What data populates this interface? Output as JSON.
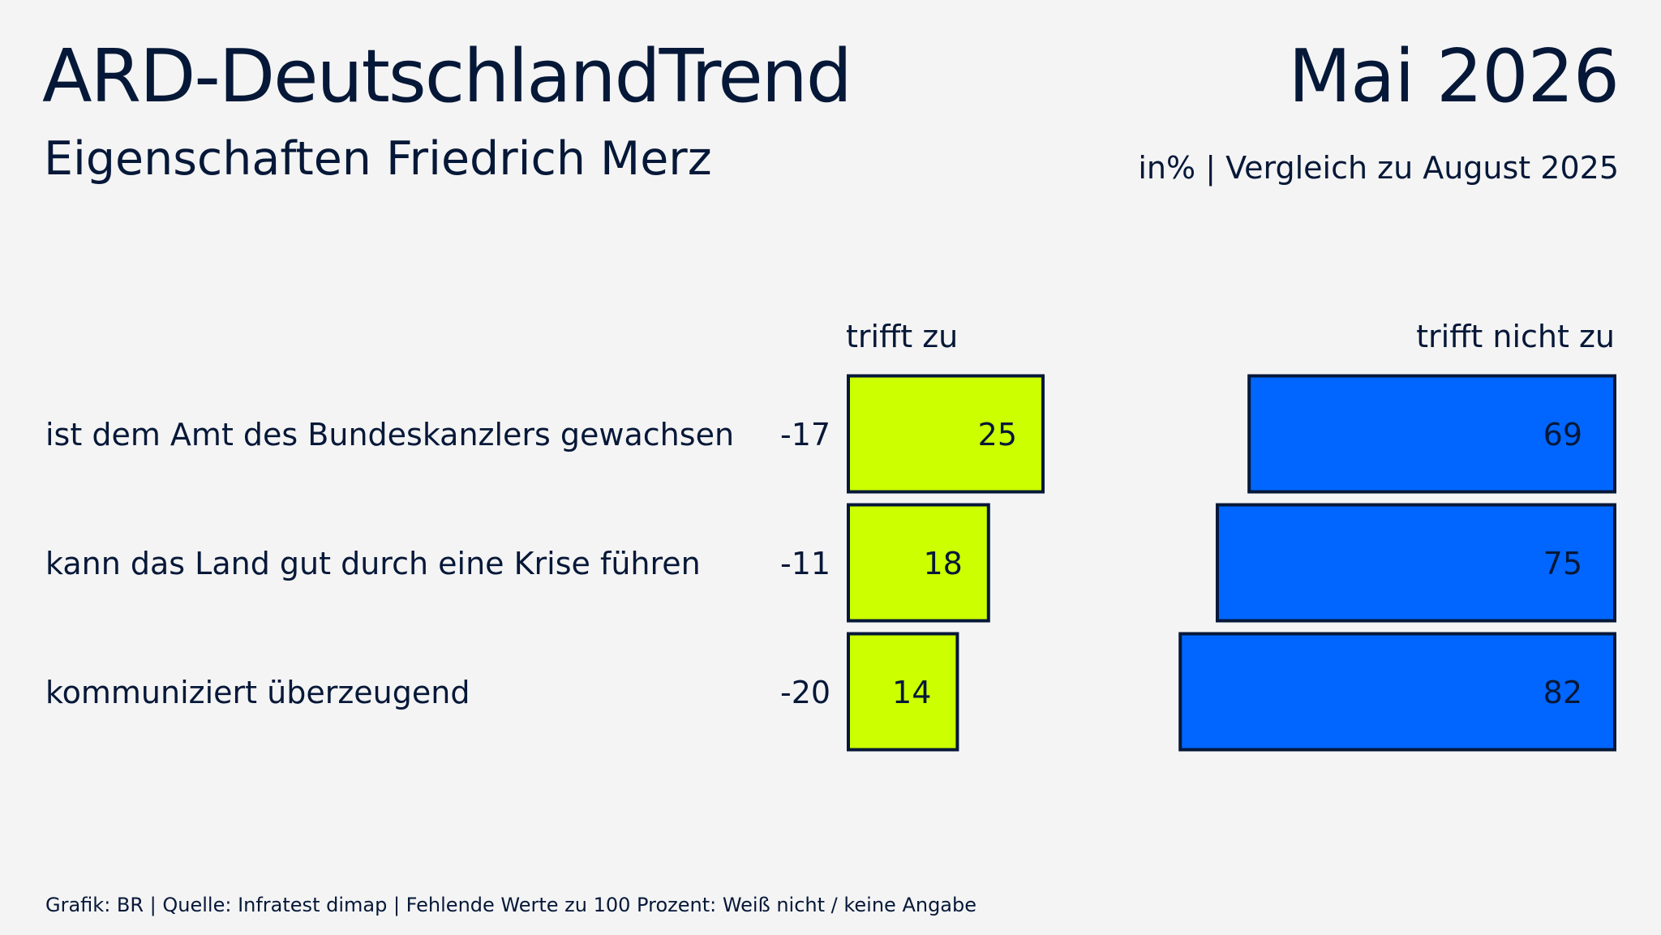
{
  "header": {
    "title": "ARD-DeutschlandTrend",
    "subtitle": "Eigenschaften Friedrich Merz",
    "date": "Mai 2026",
    "note": "in% | Vergleich zu August 2025"
  },
  "footer": {
    "text": "Grafik: BR | Quelle: Infratest dimap | Fehlende Werte zu 100 Prozent: Weiß nicht / keine Angabe"
  },
  "colors": {
    "text": "#061838",
    "trifft_zu": "#ccff00",
    "trifft_nicht_zu": "#0066ff",
    "bar_border": "#061838",
    "background": "#f4f4f4"
  },
  "chart_data": {
    "type": "bar",
    "orientation": "horizontal",
    "stacked_layout": "split",
    "categories": [
      "ist dem Amt des Bundeskanzlers gewachsen",
      "kann das Land gut durch eine Krise führen",
      "kommuniziert überzeugend"
    ],
    "change_labels": [
      "-17",
      "-11",
      "-20"
    ],
    "series": [
      {
        "name": "trifft zu",
        "values": [
          25,
          18,
          14
        ]
      },
      {
        "name": "trifft nicht zu",
        "values": [
          69,
          75,
          82
        ]
      }
    ],
    "xlim": [
      0,
      100
    ]
  }
}
